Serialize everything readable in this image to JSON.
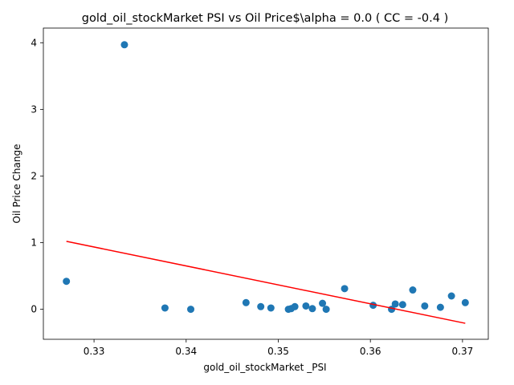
{
  "chart_data": {
    "type": "scatter",
    "title": "gold_oil_stockMarket  PSI vs Oil Price$\\alpha = 0.0 ( CC = -0.4 )",
    "xlabel": "gold_oil_stockMarket _PSI",
    "ylabel": "Oil Price Change",
    "xlim": [
      0.3245,
      0.3728
    ],
    "ylim": [
      -0.45,
      4.22
    ],
    "xticks": [
      0.33,
      0.34,
      0.35,
      0.36,
      0.37
    ],
    "xtick_labels": [
      "0.33",
      "0.34",
      "0.35",
      "0.36",
      "0.37"
    ],
    "yticks": [
      0,
      1,
      2,
      3,
      4
    ],
    "ytick_labels": [
      "0",
      "1",
      "2",
      "3",
      "4"
    ],
    "grid": false,
    "colors": {
      "points": "#1f77b4",
      "fit_line": "#ff0000"
    },
    "points": {
      "x": [
        0.327,
        0.3333,
        0.3377,
        0.3405,
        0.3465,
        0.3481,
        0.3492,
        0.3511,
        0.3514,
        0.3518,
        0.353,
        0.3537,
        0.3548,
        0.3552,
        0.3572,
        0.3603,
        0.3623,
        0.3627,
        0.3635,
        0.3646,
        0.3659,
        0.3676,
        0.3688,
        0.3703
      ],
      "y": [
        0.42,
        3.97,
        0.02,
        0.0,
        0.1,
        0.04,
        0.02,
        0.0,
        0.01,
        0.04,
        0.05,
        0.01,
        0.09,
        0.0,
        0.31,
        0.06,
        0.0,
        0.08,
        0.07,
        0.29,
        0.05,
        0.03,
        0.2,
        0.1
      ]
    },
    "fit_line": {
      "x": [
        0.327,
        0.3703
      ],
      "y": [
        1.02,
        -0.21
      ]
    }
  }
}
